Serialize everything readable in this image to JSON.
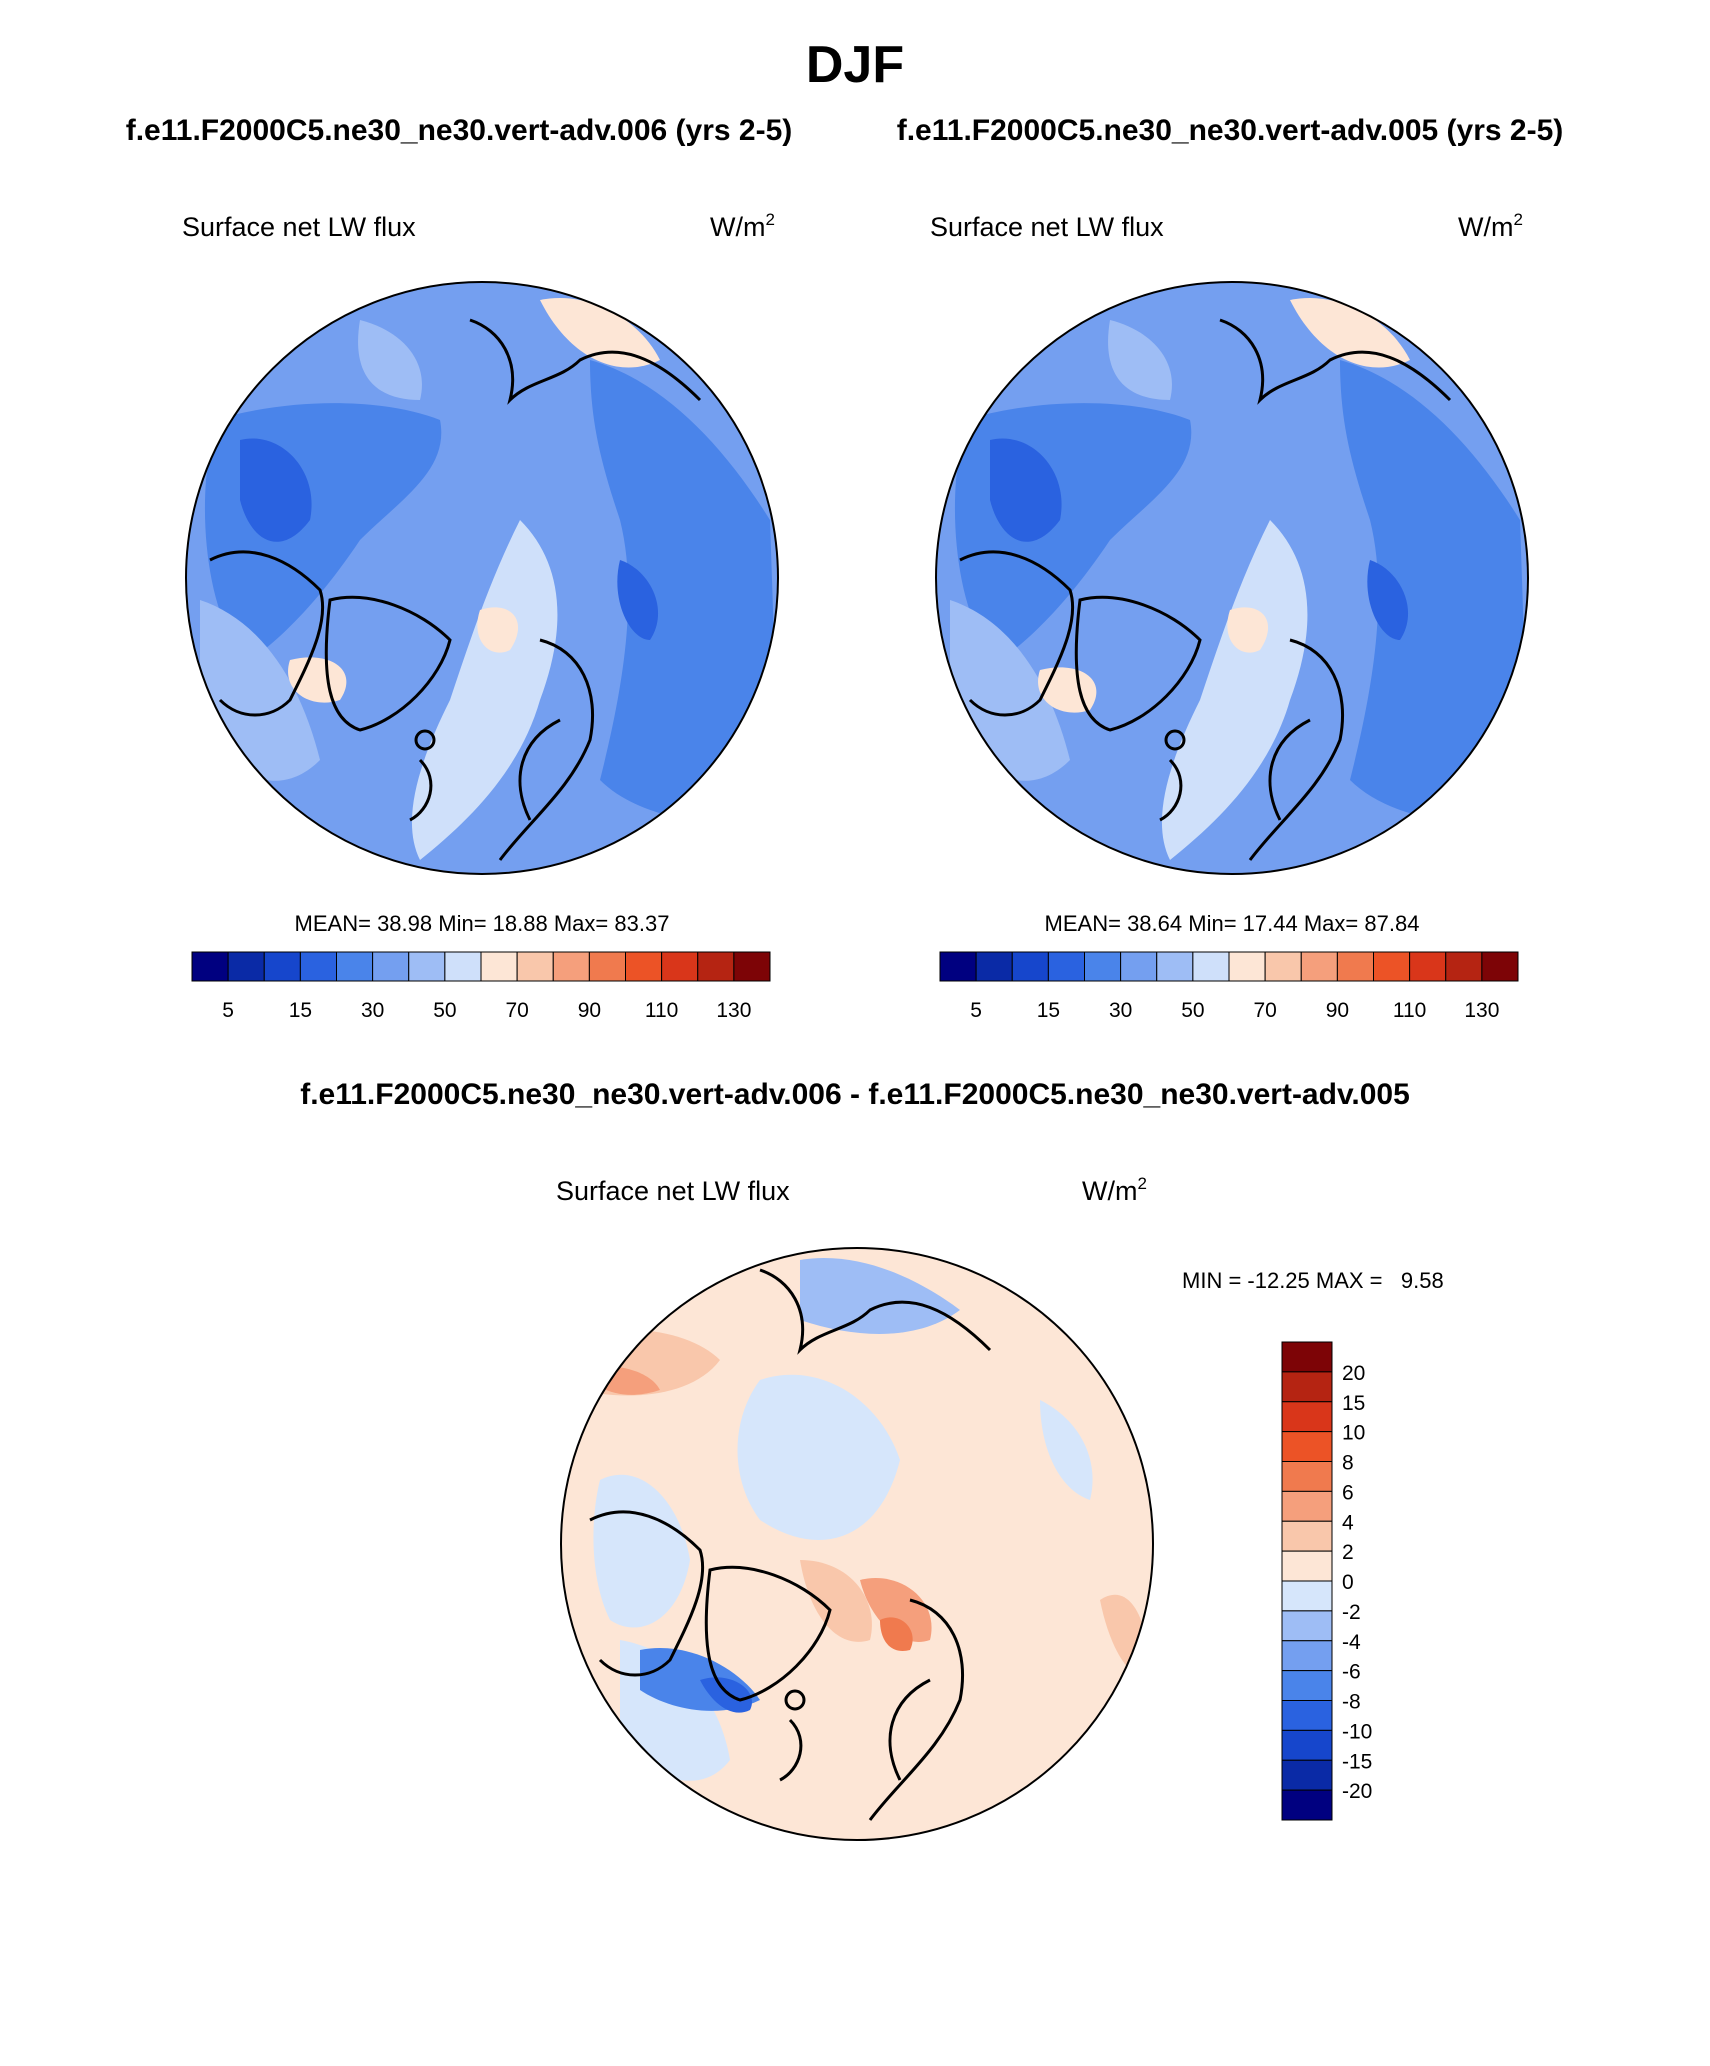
{
  "page": {
    "title": "DJF",
    "top_headers": [
      "f.e11.F2000C5.ne30_ne30.vert-adv.006 (yrs 2-5)",
      "f.e11.F2000C5.ne30_ne30.vert-adv.005 (yrs 2-5)"
    ],
    "diff_header": "f.e11.F2000C5.ne30_ne30.vert-adv.006 - f.e11.F2000C5.ne30_ne30.vert-adv.005"
  },
  "colors": {
    "abs_scale": [
      "#000080",
      "#0a2aa6",
      "#1646cc",
      "#2a62e0",
      "#4a84ea",
      "#749ff0",
      "#9ebdf5",
      "#cfe0fa",
      "#fde6d6",
      "#f9c7ab",
      "#f59f7c",
      "#f07a4e",
      "#ec5326",
      "#d9361a",
      "#b52412",
      "#7d0406"
    ],
    "diff_scale": [
      "#000080",
      "#0a2aa6",
      "#1646cc",
      "#2a62e0",
      "#4a84ea",
      "#749ff0",
      "#9ebdf5",
      "#d6e6fb",
      "#fde6d6",
      "#f9c7ab",
      "#f59f7c",
      "#f07a4e",
      "#ec5326",
      "#d9361a",
      "#b52412",
      "#7d0406"
    ],
    "abs_field": "#749ff0",
    "abs_dark": "#4a84ea",
    "abs_light": "#9ebdf5",
    "diff_field": "#fde6d6"
  },
  "chart_data": [
    {
      "type": "heatmap",
      "projection": "north-polar-stereographic",
      "title": "Surface net LW flux",
      "units": "W/m",
      "units_superscript": "2",
      "stats": {
        "mean_label": "MEAN=",
        "mean": "38.98",
        "min_label": "Min=",
        "min": "18.88",
        "max_label": "Max=",
        "max": "83.37"
      },
      "colorbar": {
        "orientation": "horizontal",
        "levels": [
          5,
          10,
          15,
          20,
          30,
          40,
          50,
          60,
          70,
          80,
          90,
          100,
          110,
          120,
          130
        ],
        "tick_labels": [
          "5",
          "15",
          "30",
          "50",
          "70",
          "90",
          "110",
          "130"
        ]
      }
    },
    {
      "type": "heatmap",
      "projection": "north-polar-stereographic",
      "title": "Surface net LW flux",
      "units": "W/m",
      "units_superscript": "2",
      "stats": {
        "mean_label": "MEAN=",
        "mean": "38.64",
        "min_label": "Min=",
        "min": "17.44",
        "max_label": "Max=",
        "max": "87.84"
      },
      "colorbar": {
        "orientation": "horizontal",
        "levels": [
          5,
          10,
          15,
          20,
          30,
          40,
          50,
          60,
          70,
          80,
          90,
          100,
          110,
          120,
          130
        ],
        "tick_labels": [
          "5",
          "15",
          "30",
          "50",
          "70",
          "90",
          "110",
          "130"
        ]
      }
    },
    {
      "type": "heatmap",
      "projection": "north-polar-stereographic",
      "title": "Surface net LW flux",
      "units": "W/m",
      "units_superscript": "2",
      "stats_text": "MIN = -12.25 MAX =   9.58",
      "stats": {
        "min": "-12.25",
        "max": "9.58"
      },
      "colorbar": {
        "orientation": "vertical",
        "levels": [
          -20,
          -15,
          -10,
          -8,
          -6,
          -4,
          -2,
          0,
          2,
          4,
          6,
          8,
          10,
          15,
          20
        ],
        "tick_labels": [
          "20",
          "15",
          "10",
          "8",
          "6",
          "4",
          "2",
          "0",
          "-2",
          "-4",
          "-6",
          "-8",
          "-10",
          "-15",
          "-20"
        ]
      }
    }
  ]
}
